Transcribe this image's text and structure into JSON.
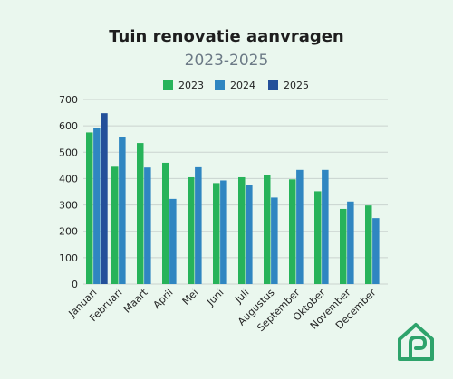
{
  "chart_data": {
    "type": "bar",
    "title": "Tuin renovatie aanvragen",
    "subtitle": "2023-2025",
    "categories": [
      "Januari",
      "Februari",
      "Maart",
      "April",
      "Mei",
      "Juni",
      "Juli",
      "Augustus",
      "September",
      "Oktober",
      "November",
      "December"
    ],
    "series": [
      {
        "name": "2023",
        "color": "#27b35a",
        "values": [
          575,
          445,
          535,
          460,
          405,
          383,
          405,
          415,
          397,
          352,
          285,
          298
        ]
      },
      {
        "name": "2024",
        "color": "#2f86c1",
        "values": [
          592,
          558,
          442,
          323,
          443,
          393,
          377,
          328,
          433,
          433,
          313,
          250
        ]
      },
      {
        "name": "2025",
        "color": "#24509a",
        "values": [
          648,
          null,
          null,
          null,
          null,
          null,
          null,
          null,
          null,
          null,
          null,
          null
        ]
      }
    ],
    "ylim": [
      0,
      700
    ],
    "yticks": [
      0,
      100,
      200,
      300,
      400,
      500,
      600,
      700
    ],
    "grid": true,
    "legend_position": "top-center"
  },
  "logo": {
    "icon": "house-logo-icon",
    "color": "#2ea36b"
  }
}
